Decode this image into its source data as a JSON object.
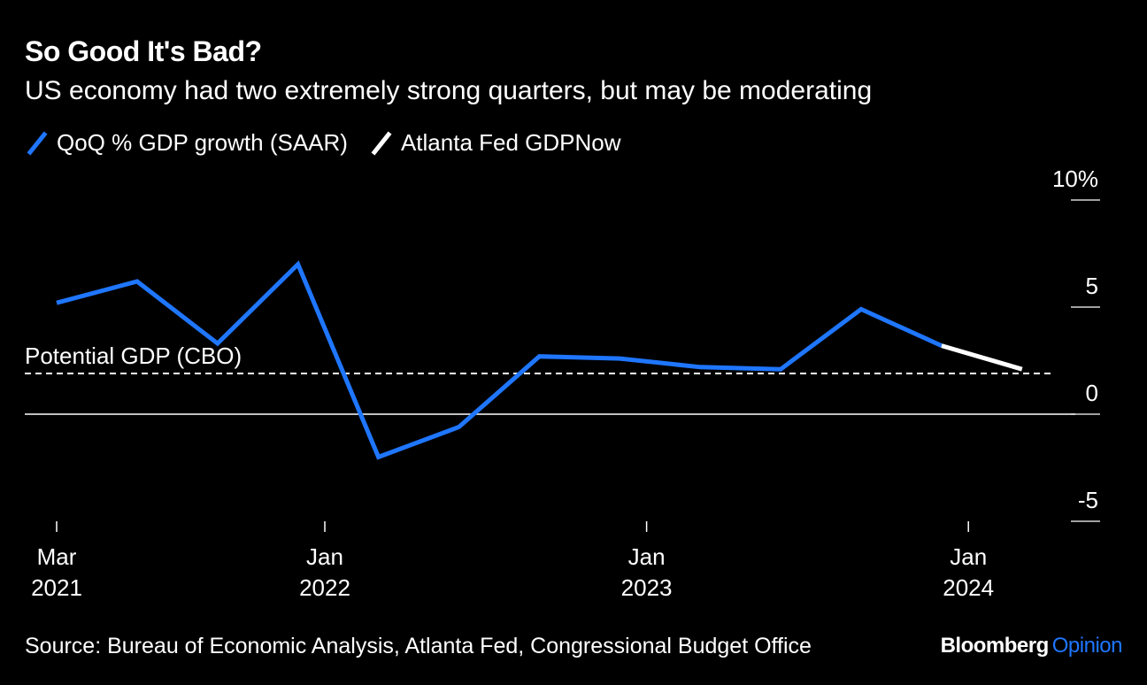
{
  "title": "So Good It's Bad?",
  "subtitle": "US economy had two extremely strong quarters, but may be moderating",
  "legend": [
    {
      "label": "QoQ % GDP growth (SAAR)",
      "color": "#1f76ff"
    },
    {
      "label": "Atlanta Fed GDPNow",
      "color": "#ffffff"
    }
  ],
  "annotation": "Potential GDP (CBO)",
  "source": "Source: Bureau of Economic Analysis, Atlanta Fed, Congressional Budget Office",
  "brand": {
    "name": "Bloomberg",
    "section": "Opinion"
  },
  "chart_data": {
    "type": "line",
    "title": "So Good It's Bad?",
    "subtitle": "US economy had two extremely strong quarters, but may be moderating",
    "ylim": [
      -5,
      10
    ],
    "y_ticks": [
      {
        "value": 10,
        "label": "10%"
      },
      {
        "value": 5,
        "label": "5"
      },
      {
        "value": 0,
        "label": "0"
      },
      {
        "value": -5,
        "label": "-5"
      }
    ],
    "x_ticks": [
      {
        "date": "2021-03",
        "line1": "Mar",
        "line2": "2021"
      },
      {
        "date": "2022-01",
        "line1": "Jan",
        "line2": "2022"
      },
      {
        "date": "2023-01",
        "line1": "Jan",
        "line2": "2023"
      },
      {
        "date": "2024-01",
        "line1": "Jan",
        "line2": "2024"
      }
    ],
    "x_range": [
      "2021-03",
      "2024-06"
    ],
    "y_axis_position": "right",
    "series": [
      {
        "name": "QoQ % GDP growth (SAAR)",
        "color": "#1f76ff",
        "points": [
          {
            "x": "2021-03",
            "y": 5.2
          },
          {
            "x": "2021-06",
            "y": 6.2
          },
          {
            "x": "2021-09",
            "y": 3.3
          },
          {
            "x": "2021-12",
            "y": 7.0
          },
          {
            "x": "2022-03",
            "y": -2.0
          },
          {
            "x": "2022-06",
            "y": -0.6
          },
          {
            "x": "2022-09",
            "y": 2.7
          },
          {
            "x": "2022-12",
            "y": 2.6
          },
          {
            "x": "2023-03",
            "y": 2.2
          },
          {
            "x": "2023-06",
            "y": 2.1
          },
          {
            "x": "2023-09",
            "y": 4.9
          },
          {
            "x": "2023-12",
            "y": 3.2
          }
        ]
      },
      {
        "name": "Atlanta Fed GDPNow",
        "color": "#ffffff",
        "points": [
          {
            "x": "2023-12",
            "y": 3.2
          },
          {
            "x": "2024-03",
            "y": 2.1
          }
        ]
      }
    ],
    "reference_lines": [
      {
        "label": "Potential GDP (CBO)",
        "y": 1.9,
        "style": "dashed"
      },
      {
        "label": "",
        "y": 0,
        "style": "solid"
      }
    ],
    "grid": false,
    "legend_position": "top-left"
  }
}
